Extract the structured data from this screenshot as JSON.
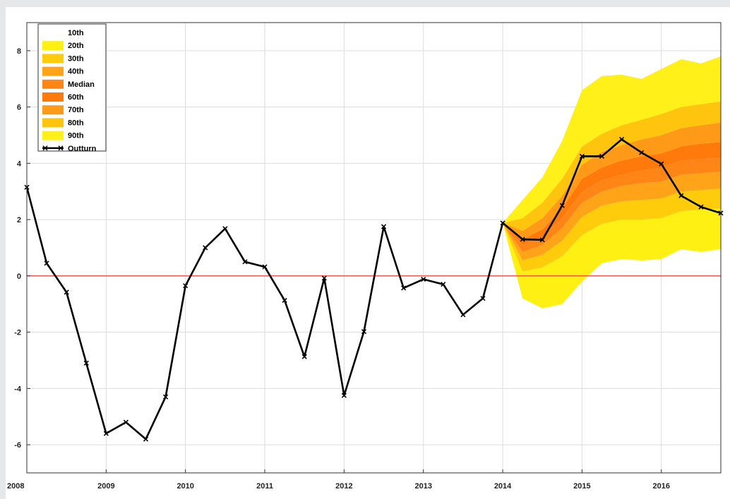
{
  "chart_data": {
    "type": "line",
    "title": "",
    "xlabel": "",
    "ylabel": "",
    "xlim": [
      2008.0,
      2016.75
    ],
    "ylim": [
      -7,
      9
    ],
    "grid": true,
    "legend_position": "top-left",
    "x_ticks": [
      2008,
      2009,
      2010,
      2011,
      2012,
      2013,
      2014,
      2015,
      2016
    ],
    "x_tick_labels": [
      "2008",
      "2009",
      "2010",
      "2011",
      "2012",
      "2013",
      "2014",
      "2015",
      "2016"
    ],
    "y_ticks": [
      -6,
      -4,
      -2,
      0,
      2,
      4,
      6,
      8
    ],
    "y_tick_labels": [
      "-6",
      "-4",
      "-2",
      "0",
      "2",
      "4",
      "6",
      "8"
    ],
    "reference_line": {
      "y": 0,
      "color": "#ff4d4d"
    },
    "series": [
      {
        "name": "Outturn",
        "color": "#000000",
        "marker": "x",
        "x": [
          2008.0,
          2008.25,
          2008.5,
          2008.75,
          2009.0,
          2009.25,
          2009.5,
          2009.75,
          2010.0,
          2010.25,
          2010.5,
          2010.75,
          2011.0,
          2011.25,
          2011.5,
          2011.75,
          2012.0,
          2012.25,
          2012.5,
          2012.75,
          2013.0,
          2013.25,
          2013.5,
          2013.75,
          2014.0,
          2014.25,
          2014.5,
          2014.75,
          2015.0,
          2015.25,
          2015.5,
          2015.75,
          2016.0,
          2016.25,
          2016.5,
          2016.75
        ],
        "values": [
          3.15,
          0.45,
          -0.58,
          -3.1,
          -5.6,
          -5.2,
          -5.8,
          -4.3,
          -0.35,
          1.0,
          1.68,
          0.5,
          0.32,
          -0.87,
          -2.87,
          -0.08,
          -4.25,
          -1.98,
          1.75,
          -0.43,
          -0.12,
          -0.3,
          -1.38,
          -0.8,
          1.88,
          1.3,
          1.28,
          2.5,
          4.25,
          4.25,
          4.85,
          4.38,
          3.98,
          2.85,
          2.45,
          2.23
        ]
      }
    ],
    "fan_x": [
      2014.0,
      2014.25,
      2014.5,
      2014.75,
      2015.0,
      2015.25,
      2015.5,
      2015.75,
      2016.0,
      2016.25,
      2016.5,
      2016.75
    ],
    "fan_bands": [
      {
        "lower": "10th",
        "upper": "20th",
        "color": "#fff014",
        "lo": [
          1.88,
          -0.8,
          -1.15,
          -1.0,
          -0.2,
          0.45,
          0.6,
          0.55,
          0.6,
          0.95,
          0.85,
          0.95
        ],
        "hi": [
          1.88,
          0.15,
          0.3,
          0.7,
          1.45,
          1.85,
          2.0,
          2.0,
          2.05,
          2.3,
          2.35,
          2.4
        ]
      },
      {
        "lower": "20th",
        "upper": "30th",
        "color": "#ffcc0c",
        "lo": [
          1.88,
          0.15,
          0.3,
          0.7,
          1.45,
          1.85,
          2.0,
          2.0,
          2.05,
          2.3,
          2.35,
          2.4
        ],
        "hi": [
          1.88,
          0.55,
          0.75,
          1.25,
          2.1,
          2.5,
          2.65,
          2.7,
          2.75,
          3.0,
          3.05,
          3.1
        ]
      },
      {
        "lower": "30th",
        "upper": "40th",
        "color": "#ffa318",
        "lo": [
          1.88,
          0.55,
          0.75,
          1.25,
          2.1,
          2.5,
          2.65,
          2.7,
          2.75,
          3.0,
          3.05,
          3.1
        ],
        "hi": [
          1.88,
          0.85,
          1.1,
          1.7,
          2.6,
          3.0,
          3.2,
          3.3,
          3.35,
          3.6,
          3.65,
          3.7
        ]
      },
      {
        "lower": "40th",
        "upper": "Median",
        "color": "#ff8516",
        "lo": [
          1.88,
          0.85,
          1.1,
          1.7,
          2.6,
          3.0,
          3.2,
          3.3,
          3.35,
          3.6,
          3.65,
          3.7
        ],
        "hi": [
          1.88,
          1.1,
          1.4,
          2.05,
          3.0,
          3.4,
          3.6,
          3.75,
          3.85,
          4.1,
          4.15,
          4.2
        ]
      },
      {
        "lower": "Median",
        "upper": "60th",
        "color": "#ff7a0a",
        "lo": [
          1.88,
          1.1,
          1.4,
          2.05,
          3.0,
          3.4,
          3.6,
          3.75,
          3.85,
          4.1,
          4.15,
          4.2
        ],
        "hi": [
          1.88,
          1.3,
          1.65,
          2.4,
          3.45,
          3.85,
          4.1,
          4.25,
          4.35,
          4.6,
          4.7,
          4.75
        ]
      },
      {
        "lower": "60th",
        "upper": "70th",
        "color": "#ff9a18",
        "lo": [
          1.88,
          1.3,
          1.65,
          2.4,
          3.45,
          3.85,
          4.1,
          4.25,
          4.35,
          4.6,
          4.7,
          4.75
        ],
        "hi": [
          1.88,
          1.6,
          2.05,
          2.85,
          3.95,
          4.4,
          4.65,
          4.85,
          5.0,
          5.25,
          5.35,
          5.45
        ]
      },
      {
        "lower": "70th",
        "upper": "80th",
        "color": "#ffc40e",
        "lo": [
          1.88,
          1.6,
          2.05,
          2.85,
          3.95,
          4.4,
          4.65,
          4.85,
          5.0,
          5.25,
          5.35,
          5.45
        ],
        "hi": [
          1.88,
          2.05,
          2.6,
          3.45,
          4.6,
          5.05,
          5.35,
          5.55,
          5.75,
          6.0,
          6.1,
          6.2
        ]
      },
      {
        "lower": "80th",
        "upper": "90th",
        "color": "#fff01a",
        "lo": [
          1.88,
          2.05,
          2.6,
          3.45,
          4.6,
          5.05,
          5.35,
          5.55,
          5.75,
          6.0,
          6.1,
          6.2
        ],
        "hi": [
          1.88,
          2.7,
          3.5,
          4.8,
          6.6,
          7.1,
          7.15,
          7.0,
          7.35,
          7.7,
          7.55,
          7.8
        ]
      }
    ],
    "legend": [
      {
        "label": "10th",
        "color": "#fff014",
        "swatch": "none"
      },
      {
        "label": "20th",
        "color": "#fff014",
        "swatch": "patch"
      },
      {
        "label": "30th",
        "color": "#ffcc0c",
        "swatch": "patch"
      },
      {
        "label": "40th",
        "color": "#ffa318",
        "swatch": "patch"
      },
      {
        "label": "Median",
        "color": "#ff8516",
        "swatch": "patch"
      },
      {
        "label": "60th",
        "color": "#ff7a0a",
        "swatch": "patch"
      },
      {
        "label": "70th",
        "color": "#ff9a18",
        "swatch": "patch"
      },
      {
        "label": "80th",
        "color": "#ffc40e",
        "swatch": "patch"
      },
      {
        "label": "90th",
        "color": "#fff01a",
        "swatch": "patch"
      },
      {
        "label": "Outturn",
        "color": "#000000",
        "swatch": "line-marker"
      }
    ]
  }
}
